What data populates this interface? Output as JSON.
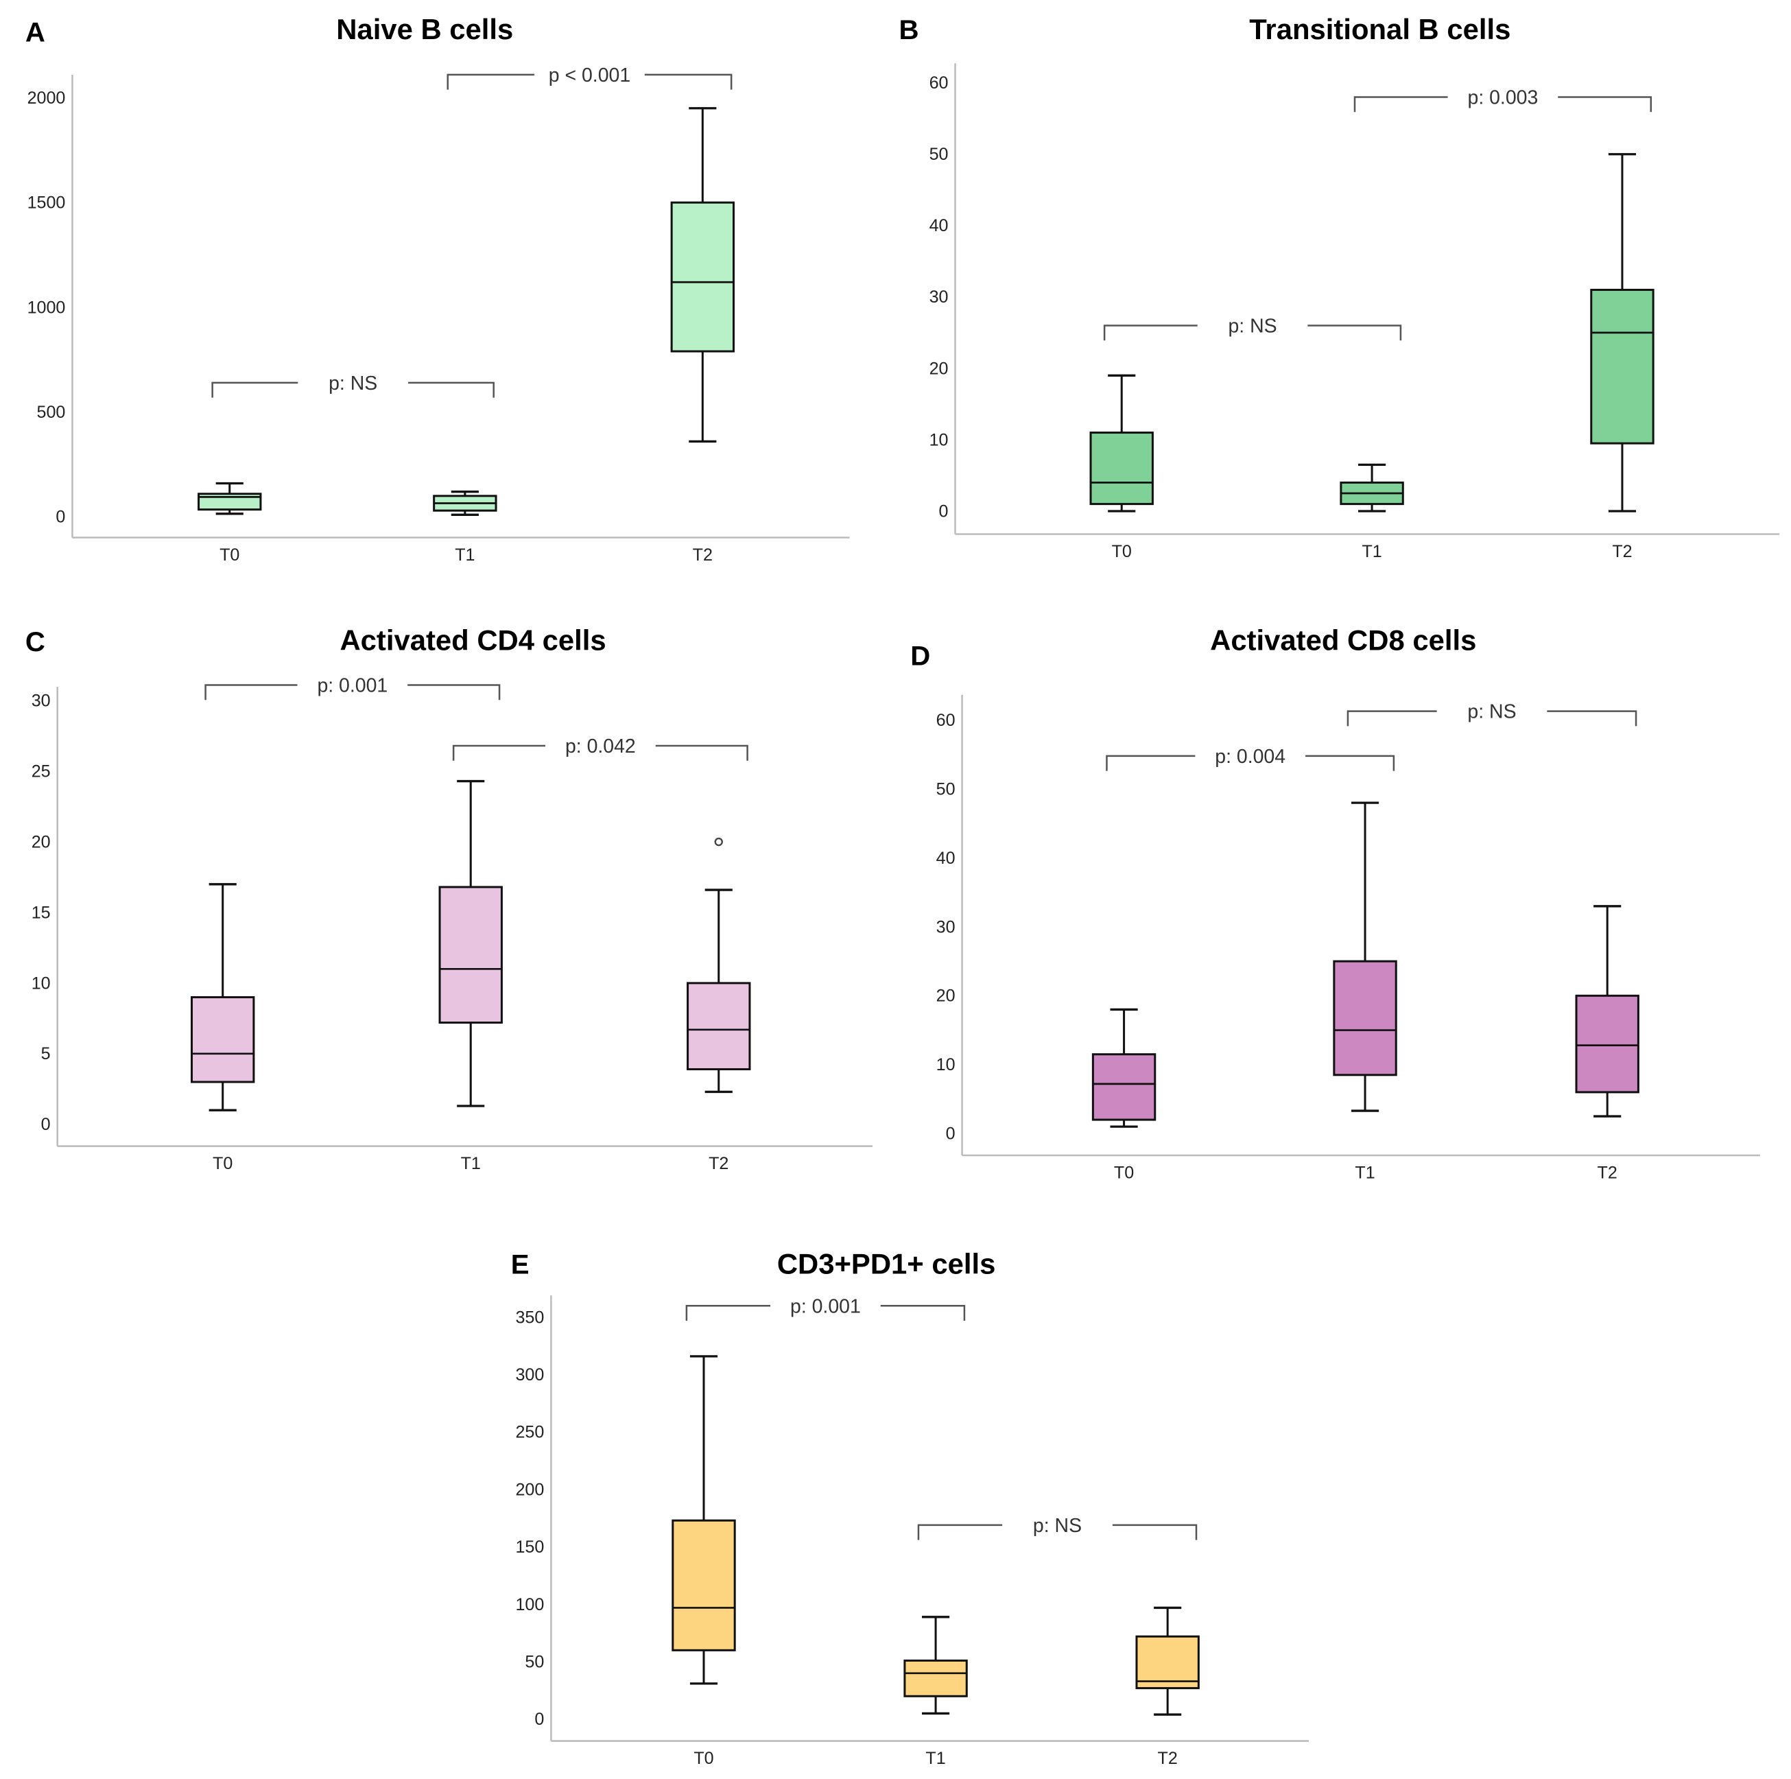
{
  "chart_data": [
    {
      "panel": "A",
      "type": "box",
      "title": "Naive B cells",
      "categories": [
        "T0",
        "T1",
        "T2"
      ],
      "ylim": [
        0,
        2000
      ],
      "yticks": [
        0,
        500,
        1000,
        1500,
        2000
      ],
      "color": "#b8f0c8",
      "boxes": [
        {
          "min": 15,
          "q1": 35,
          "median": 95,
          "q3": 110,
          "max": 160
        },
        {
          "min": 10,
          "q1": 30,
          "median": 65,
          "q3": 100,
          "max": 120
        },
        {
          "min": 360,
          "q1": 790,
          "median": 1120,
          "q3": 1500,
          "max": 1950
        }
      ],
      "outliers": [],
      "comparisons": [
        {
          "from": "T0",
          "to": "T1",
          "label": "p: NS",
          "y": 640
        },
        {
          "from": "T1",
          "to": "T2",
          "label": "p < 0.001",
          "y": 2110
        }
      ]
    },
    {
      "panel": "B",
      "type": "box",
      "title": "Transitional B cells",
      "categories": [
        "T0",
        "T1",
        "T2"
      ],
      "ylim": [
        0,
        60
      ],
      "yticks": [
        0,
        10,
        20,
        30,
        40,
        50,
        60
      ],
      "color": "#7fd197",
      "boxes": [
        {
          "min": 0,
          "q1": 1,
          "median": 4,
          "q3": 11,
          "max": 19
        },
        {
          "min": 0,
          "q1": 1,
          "median": 2.5,
          "q3": 4,
          "max": 6.5
        },
        {
          "min": 0,
          "q1": 9.5,
          "median": 25,
          "q3": 31,
          "max": 50
        }
      ],
      "outliers": [],
      "comparisons": [
        {
          "from": "T0",
          "to": "T1",
          "label": "p: NS",
          "y": 26
        },
        {
          "from": "T1",
          "to": "T2",
          "label": "p: 0.003",
          "y": 58
        }
      ]
    },
    {
      "panel": "C",
      "type": "box",
      "title": "Activated CD4 cells",
      "categories": [
        "T0",
        "T1",
        "T2"
      ],
      "ylim": [
        0,
        30
      ],
      "yticks": [
        0,
        5,
        10,
        15,
        20,
        25,
        30
      ],
      "color": "#e8c4e0",
      "boxes": [
        {
          "min": 1,
          "q1": 3,
          "median": 5,
          "q3": 9,
          "max": 17
        },
        {
          "min": 1.3,
          "q1": 7.2,
          "median": 11,
          "q3": 16.8,
          "max": 24.3
        },
        {
          "min": 2.3,
          "q1": 3.9,
          "median": 6.7,
          "q3": 10,
          "max": 16.6
        }
      ],
      "outliers": [
        {
          "category": "T2",
          "value": 20
        }
      ],
      "comparisons": [
        {
          "from": "T0",
          "to": "T1",
          "label": "p: 0.001",
          "y": 31.1
        },
        {
          "from": "T1",
          "to": "T2",
          "label": "p: 0.042",
          "y": 26.8
        }
      ]
    },
    {
      "panel": "D",
      "type": "box",
      "title": "Activated CD8 cells",
      "categories": [
        "T0",
        "T1",
        "T2"
      ],
      "ylim": [
        0,
        60
      ],
      "yticks": [
        0,
        10,
        20,
        30,
        40,
        50,
        60
      ],
      "color": "#cc88c0",
      "boxes": [
        {
          "min": 1,
          "q1": 2,
          "median": 7.2,
          "q3": 11.5,
          "max": 18
        },
        {
          "min": 3.3,
          "q1": 8.5,
          "median": 15,
          "q3": 25,
          "max": 48
        },
        {
          "min": 2.5,
          "q1": 6,
          "median": 12.8,
          "q3": 20,
          "max": 33
        }
      ],
      "outliers": [],
      "comparisons": [
        {
          "from": "T0",
          "to": "T1",
          "label": "p: 0.004",
          "y": 54.8
        },
        {
          "from": "T1",
          "to": "T2",
          "label": "p: NS",
          "y": 61.3
        }
      ]
    },
    {
      "panel": "E",
      "type": "box",
      "title": "CD3+PD1+ cells",
      "categories": [
        "T0",
        "T1",
        "T2"
      ],
      "ylim": [
        0,
        350
      ],
      "yticks": [
        0,
        50,
        100,
        150,
        200,
        250,
        300,
        350
      ],
      "color": "#fdd47f",
      "boxes": [
        {
          "min": 31,
          "q1": 60,
          "median": 97,
          "q3": 173,
          "max": 316
        },
        {
          "min": 5,
          "q1": 20,
          "median": 40,
          "q3": 51,
          "max": 89
        },
        {
          "min": 4,
          "q1": 27,
          "median": 33,
          "q3": 72,
          "max": 97
        }
      ],
      "outliers": [],
      "comparisons": [
        {
          "from": "T0",
          "to": "T1",
          "label": "p: 0.001",
          "y": 360
        },
        {
          "from": "T1",
          "to": "T2",
          "label": "p: NS",
          "y": 169
        }
      ]
    }
  ]
}
